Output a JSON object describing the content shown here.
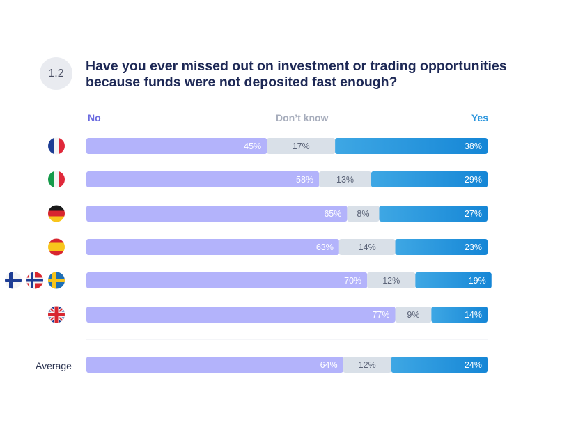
{
  "question": {
    "number": "1.2",
    "text": "Have you ever missed out on investment or trading opportunities because funds were not deposited fast enough?"
  },
  "colors": {
    "no": "#b3b3fb",
    "dont_know": "#d9e0e8",
    "yes_start": "#3ea7e4",
    "yes_end": "#1586d6",
    "label_light": "#ffffff",
    "label_dark": "#5c6478"
  },
  "chart_data": {
    "type": "bar",
    "orientation": "horizontal-stacked-100",
    "title": "Have you ever missed out on investment or trading opportunities because funds were not deposited fast enough?",
    "legend": [
      "No",
      "Don’t know",
      "Yes"
    ],
    "categories": [
      "France",
      "Italy",
      "Germany",
      "Spain",
      "Finland, Norway, Sweden",
      "United Kingdom",
      "Average"
    ],
    "category_icons": [
      "flag-fr",
      "flag-it",
      "flag-de",
      "flag-es",
      "flag-fi,flag-no,flag-se",
      "flag-gb",
      ""
    ],
    "series": [
      {
        "name": "No",
        "values": [
          45,
          58,
          65,
          63,
          70,
          77,
          64
        ]
      },
      {
        "name": "Don’t know",
        "values": [
          17,
          13,
          8,
          14,
          12,
          9,
          12
        ]
      },
      {
        "name": "Yes",
        "values": [
          38,
          29,
          27,
          23,
          19,
          14,
          24
        ]
      }
    ],
    "value_suffix": "%",
    "xlim": [
      0,
      100
    ]
  },
  "average_label": "Average"
}
